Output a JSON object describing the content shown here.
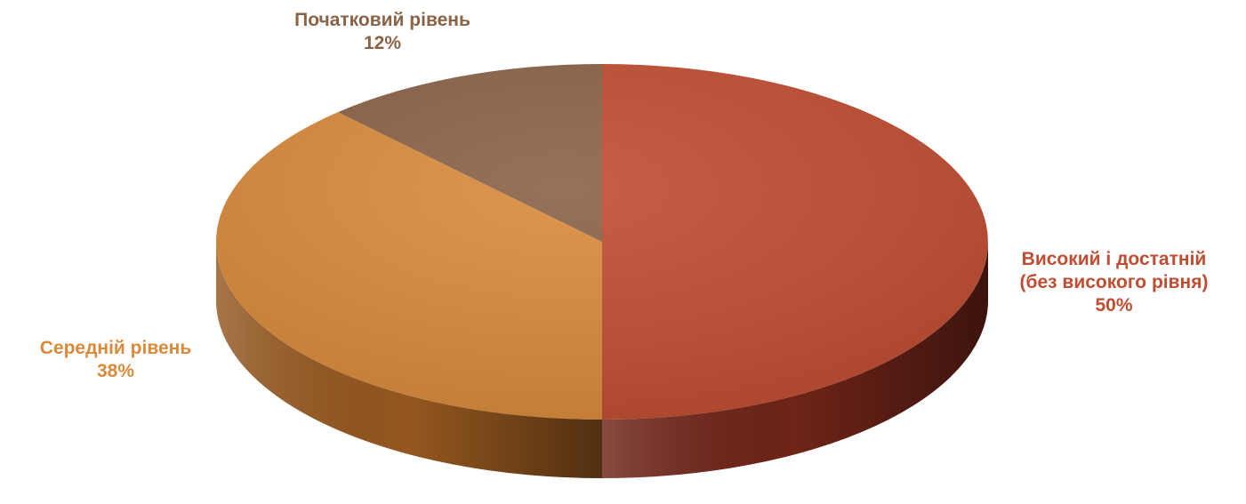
{
  "chart_data": {
    "type": "pie",
    "title": "",
    "slices": [
      {
        "label_lines": [
          "Високий і достатній",
          "(без високого рівня)"
        ],
        "value": 50,
        "value_label": "50%",
        "color": "#c04d31",
        "side_color": "#6e2418"
      },
      {
        "label_lines": [
          "Середній рівень"
        ],
        "value": 38,
        "value_label": "38%",
        "color": "#d98a3b",
        "side_color": "#94571f"
      },
      {
        "label_lines": [
          "Початковий рівень"
        ],
        "value": 12,
        "value_label": "12%",
        "color": "#8a6246",
        "side_color": "#5c3f2b"
      }
    ],
    "start_angle_deg": 0,
    "direction": "clockwise",
    "style": "3d-perspective",
    "legend": "none"
  }
}
